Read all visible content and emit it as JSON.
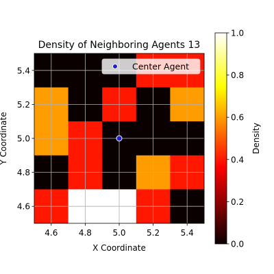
{
  "chart_data": {
    "type": "heatmap",
    "title": "Density of Neighboring Agents 13",
    "xlabel": "X Coordinate",
    "ylabel": "Y Coordinate",
    "xlim": [
      4.5,
      5.5
    ],
    "ylim": [
      4.5,
      5.5
    ],
    "x_ticks": [
      "4.6",
      "4.8",
      "5.0",
      "5.2",
      "5.4"
    ],
    "y_ticks": [
      "4.6",
      "4.8",
      "5.0",
      "5.2",
      "5.4"
    ],
    "grid": true,
    "rows_top_to_bottom": [
      [
        0.0,
        0.0,
        0.0,
        0.4,
        0.4
      ],
      [
        0.6,
        0.0,
        0.4,
        0.0,
        0.6
      ],
      [
        0.6,
        0.4,
        0.0,
        0.0,
        0.0
      ],
      [
        0.0,
        0.4,
        0.0,
        0.6,
        0.4
      ],
      [
        0.4,
        1.0,
        1.0,
        0.4,
        0.0
      ]
    ],
    "center_agent": {
      "x": 5.0,
      "y": 5.0,
      "label": "Center Agent"
    },
    "legend": {
      "position": "top-right",
      "entries": [
        "Center Agent"
      ]
    },
    "colorbar": {
      "label": "Density",
      "range": [
        0.0,
        1.0
      ],
      "ticks": [
        "0.0",
        "0.2",
        "0.4",
        "0.6",
        "0.8",
        "1.0"
      ],
      "colormap": "hot"
    }
  }
}
